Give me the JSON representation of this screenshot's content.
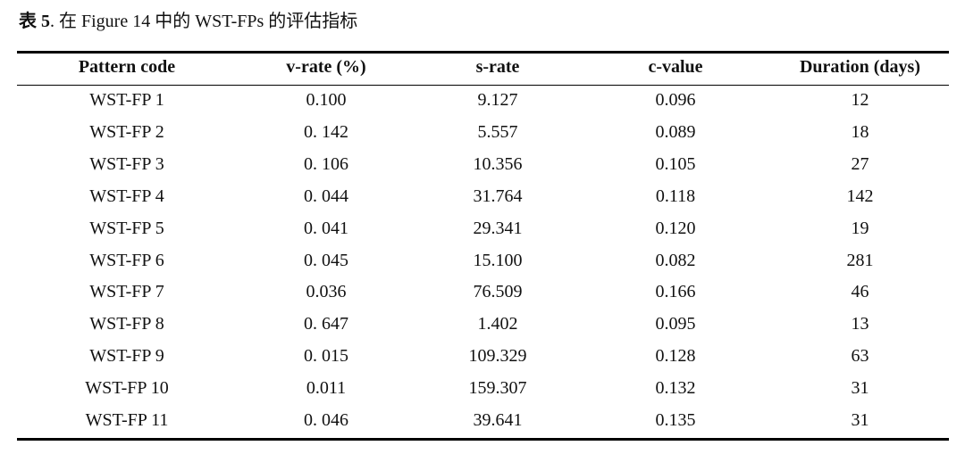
{
  "caption": {
    "label": "表 5",
    "text": ". 在 Figure 14 中的 WST-FPs 的评估指标"
  },
  "table": {
    "headers": [
      "Pattern code",
      "v-rate (%)",
      "s-rate",
      "c-value",
      "Duration (days)"
    ],
    "rows": [
      [
        "WST-FP 1",
        "0.100",
        "9.127",
        "0.096",
        "12"
      ],
      [
        "WST-FP 2",
        "0. 142",
        "5.557",
        "0.089",
        "18"
      ],
      [
        "WST-FP 3",
        "0. 106",
        "10.356",
        "0.105",
        "27"
      ],
      [
        "WST-FP 4",
        "0. 044",
        "31.764",
        "0.118",
        "142"
      ],
      [
        "WST-FP 5",
        "0. 041",
        "29.341",
        "0.120",
        "19"
      ],
      [
        "WST-FP 6",
        "0. 045",
        "15.100",
        "0.082",
        "281"
      ],
      [
        "WST-FP 7",
        "0.036",
        "76.509",
        "0.166",
        "46"
      ],
      [
        "WST-FP 8",
        "0. 647",
        "1.402",
        "0.095",
        "13"
      ],
      [
        "WST-FP 9",
        "0. 015",
        "109.329",
        "0.128",
        "63"
      ],
      [
        "WST-FP 10",
        "0.011",
        "159.307",
        "0.132",
        "31"
      ],
      [
        "WST-FP 11",
        "0. 046",
        "39.641",
        "0.135",
        "31"
      ]
    ]
  }
}
